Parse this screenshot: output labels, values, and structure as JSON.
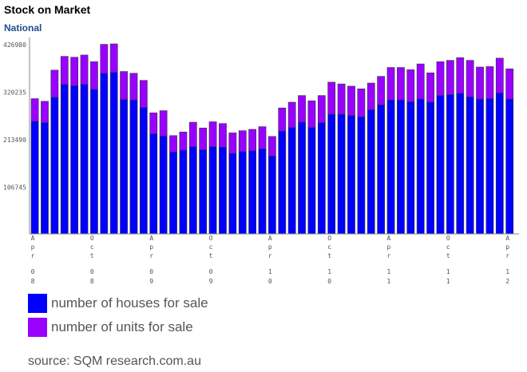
{
  "title": "Stock on Market",
  "subtitle": "National",
  "source": "source: SQM research.com.au",
  "colors": {
    "houses": "#0000ff",
    "units": "#9900ff",
    "axis": "#888888",
    "text": "#555555"
  },
  "chart_data": {
    "type": "bar",
    "stacked": true,
    "title": "Stock on Market",
    "subtitle": "National",
    "ylim": [
      0,
      426980
    ],
    "yticks": [
      106745,
      213490,
      320235,
      426980
    ],
    "series": [
      {
        "name": "number of houses for sale",
        "values": [
          253000,
          250000,
          307000,
          336000,
          333000,
          336000,
          325000,
          361000,
          363000,
          302000,
          301000,
          284000,
          225000,
          220000,
          184000,
          188000,
          196000,
          189000,
          196000,
          195000,
          181000,
          185000,
          187000,
          191000,
          175000,
          231000,
          239000,
          251000,
          239000,
          250000,
          269000,
          269000,
          266000,
          263000,
          279000,
          290000,
          301000,
          301000,
          297000,
          303000,
          296000,
          311000,
          313000,
          316000,
          308000,
          303000,
          304000,
          317000,
          303000
        ]
      },
      {
        "name": "number of units for sale",
        "values": [
          51000,
          48000,
          61000,
          63000,
          64000,
          66000,
          62000,
          65000,
          64000,
          63000,
          60000,
          61000,
          47000,
          57000,
          37000,
          41000,
          55000,
          49000,
          56000,
          53000,
          46000,
          47000,
          48000,
          50000,
          44000,
          52000,
          57000,
          60000,
          60000,
          61000,
          72000,
          68000,
          66000,
          63000,
          60000,
          64000,
          73000,
          73000,
          72000,
          79000,
          66000,
          76000,
          77000,
          80000,
          82000,
          72000,
          72000,
          78000,
          68000
        ]
      }
    ],
    "xticks": [
      {
        "index": 0,
        "month": "Apr",
        "year": "08"
      },
      {
        "index": 6,
        "month": "Oct",
        "year": "08"
      },
      {
        "index": 12,
        "month": "Apr",
        "year": "09"
      },
      {
        "index": 18,
        "month": "Oct",
        "year": "09"
      },
      {
        "index": 24,
        "month": "Apr",
        "year": "10"
      },
      {
        "index": 30,
        "month": "Oct",
        "year": "10"
      },
      {
        "index": 36,
        "month": "Apr",
        "year": "11"
      },
      {
        "index": 42,
        "month": "Oct",
        "year": "11"
      },
      {
        "index": 48,
        "month": "Apr",
        "year": "12"
      }
    ]
  },
  "legend": [
    {
      "label": "number of houses for sale",
      "color": "#0000ff"
    },
    {
      "label": "number of units for sale",
      "color": "#9900ff"
    }
  ]
}
